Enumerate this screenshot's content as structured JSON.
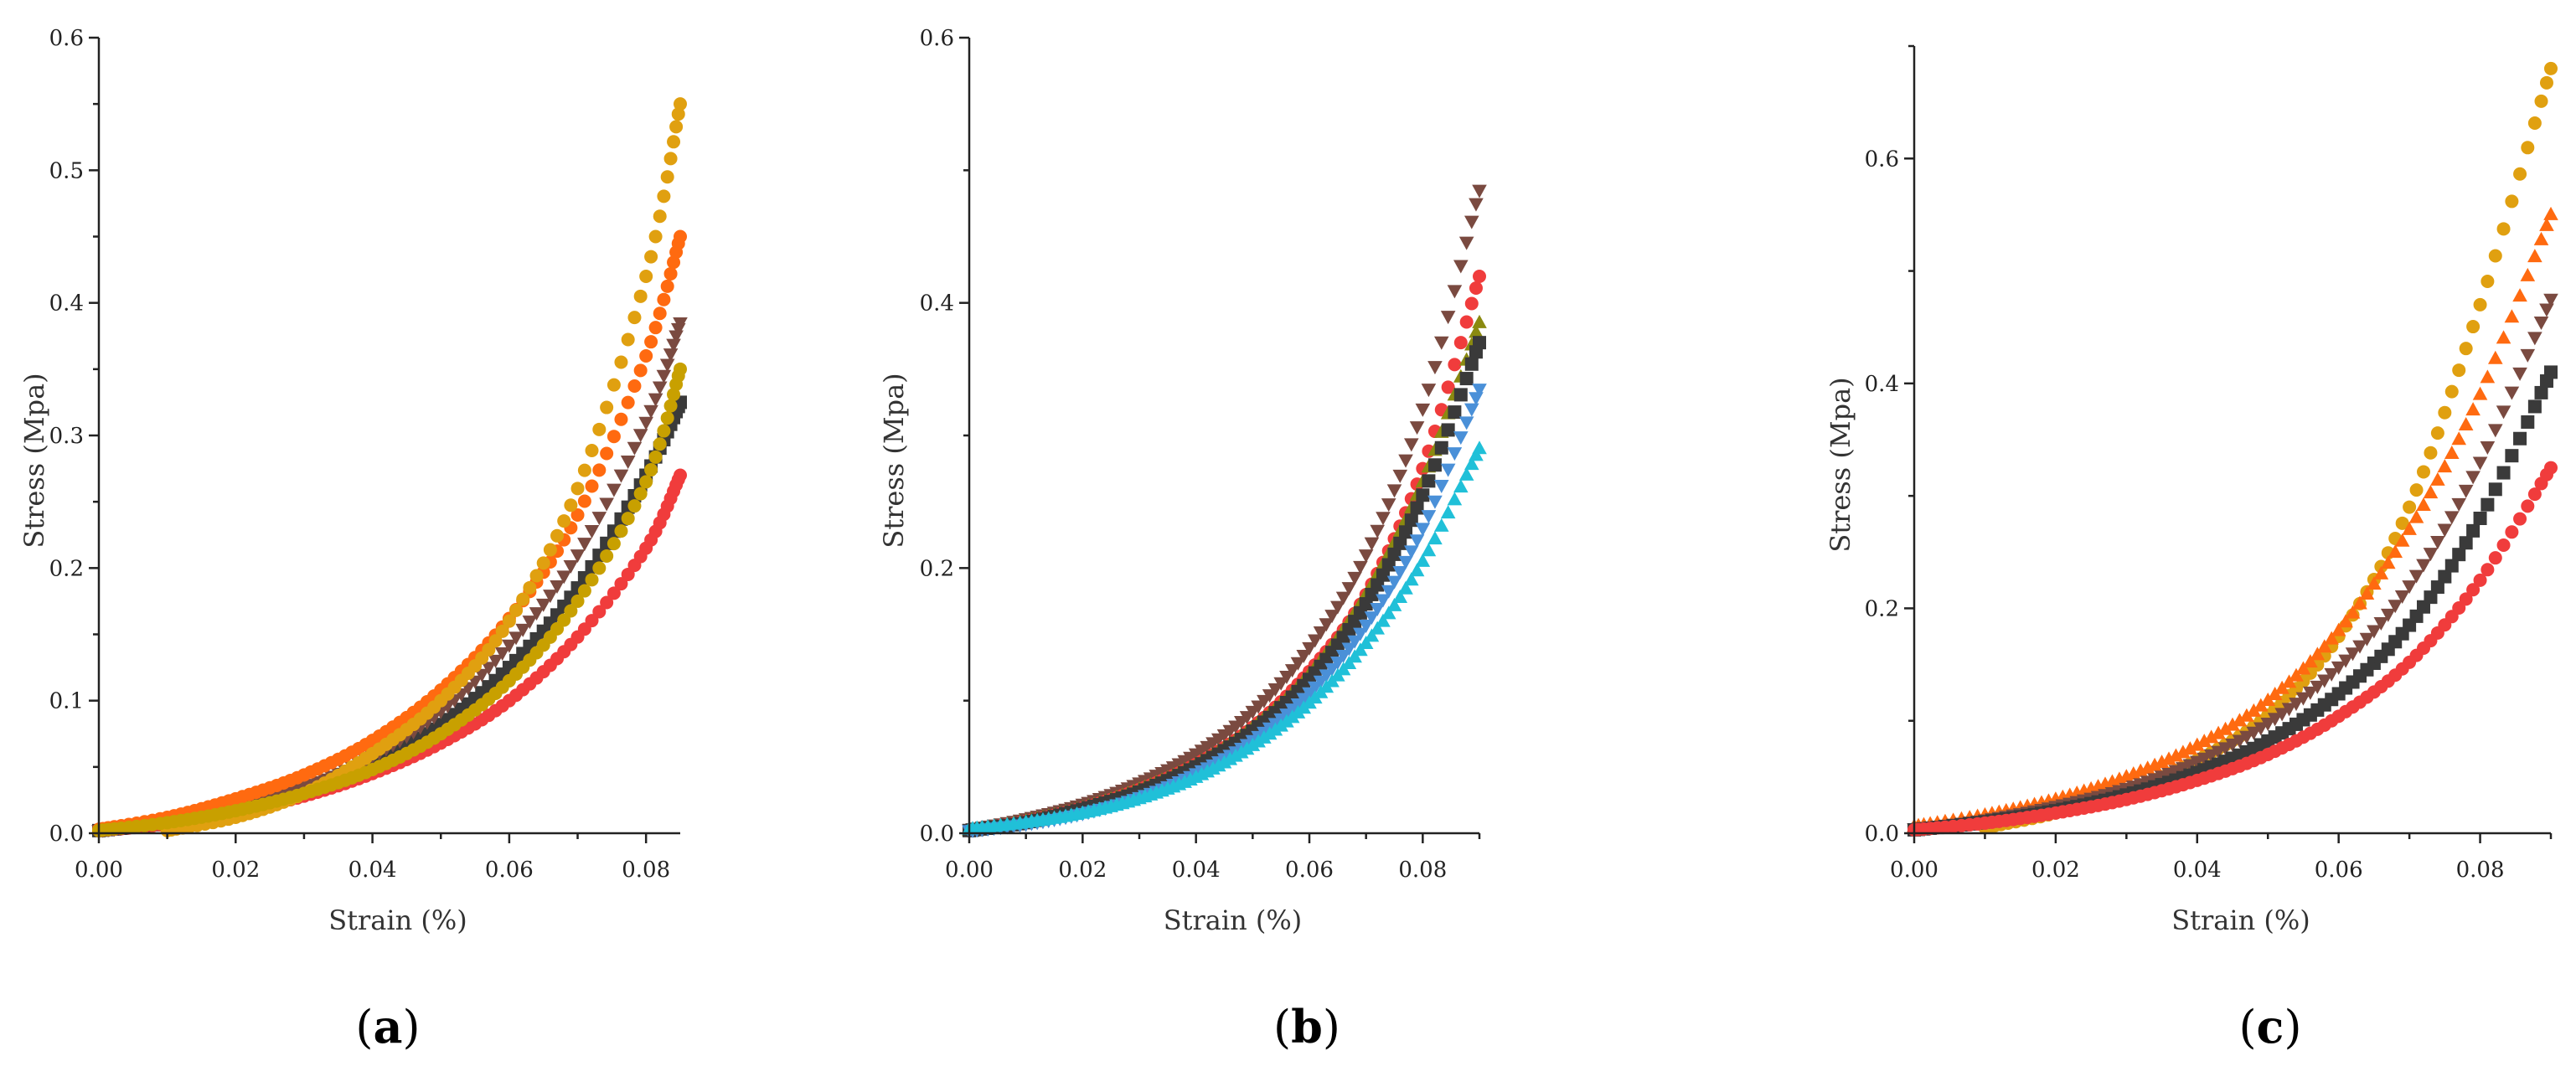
{
  "chart_data": [
    {
      "type": "scatter",
      "panel_label": "a",
      "xlabel": "Strain (%)",
      "ylabel": "Stress (Mpa)",
      "xlim": [
        0,
        0.085
      ],
      "ylim": [
        0,
        0.6
      ],
      "xticks": [
        "0.00",
        "0.02",
        "0.04",
        "0.06",
        "0.08"
      ],
      "yticks": [
        "0.0",
        "0.1",
        "0.2",
        "0.3",
        "0.4",
        "0.5",
        "0.6"
      ],
      "grid": false,
      "series": [
        {
          "color": "#3a3a3a",
          "marker": "square",
          "x": [
            0,
            0.01,
            0.02,
            0.03,
            0.04,
            0.05,
            0.06,
            0.07,
            0.08,
            0.085
          ],
          "y": [
            0.002,
            0.008,
            0.018,
            0.032,
            0.052,
            0.082,
            0.125,
            0.185,
            0.27,
            0.325
          ]
        },
        {
          "color": "#f03c3c",
          "marker": "circle",
          "x": [
            0,
            0.01,
            0.02,
            0.03,
            0.04,
            0.05,
            0.06,
            0.07,
            0.08,
            0.085
          ],
          "y": [
            0.002,
            0.007,
            0.016,
            0.028,
            0.045,
            0.068,
            0.1,
            0.148,
            0.215,
            0.27
          ]
        },
        {
          "color": "#7a4a40",
          "marker": "triangle-down",
          "x": [
            0,
            0.01,
            0.02,
            0.03,
            0.04,
            0.05,
            0.06,
            0.07,
            0.08,
            0.085
          ],
          "y": [
            0.002,
            0.009,
            0.02,
            0.035,
            0.058,
            0.092,
            0.142,
            0.21,
            0.31,
            0.385
          ]
        },
        {
          "color": "#ff6a10",
          "marker": "circle",
          "x": [
            0,
            0.01,
            0.02,
            0.03,
            0.04,
            0.05,
            0.06,
            0.07,
            0.08,
            0.085
          ],
          "y": [
            0.003,
            0.012,
            0.026,
            0.044,
            0.07,
            0.108,
            0.162,
            0.24,
            0.36,
            0.45
          ]
        },
        {
          "color": "#e0a010",
          "marker": "circle",
          "x": [
            0.01,
            0.02,
            0.03,
            0.04,
            0.05,
            0.06,
            0.07,
            0.08,
            0.085
          ],
          "y": [
            0.002,
            0.012,
            0.03,
            0.06,
            0.1,
            0.16,
            0.26,
            0.42,
            0.55
          ]
        },
        {
          "color": "#c8a000",
          "marker": "circle",
          "x": [
            0,
            0.01,
            0.02,
            0.03,
            0.04,
            0.05,
            0.06,
            0.07,
            0.08,
            0.085
          ],
          "y": [
            0.002,
            0.008,
            0.017,
            0.03,
            0.048,
            0.075,
            0.115,
            0.175,
            0.265,
            0.35
          ]
        }
      ]
    },
    {
      "type": "scatter",
      "panel_label": "b",
      "xlabel": "Strain (%)",
      "ylabel": "Stress (Mpa)",
      "xlim": [
        0,
        0.09
      ],
      "ylim": [
        0,
        0.6
      ],
      "xticks": [
        "0.00",
        "0.02",
        "0.04",
        "0.06",
        "0.08"
      ],
      "yticks": [
        "0.0",
        "0.2",
        "0.4",
        "0.6"
      ],
      "grid": false,
      "series": [
        {
          "color": "#7a4a40",
          "marker": "triangle-down",
          "x": [
            0,
            0.01,
            0.02,
            0.03,
            0.04,
            0.05,
            0.06,
            0.07,
            0.08,
            0.09
          ],
          "y": [
            0.003,
            0.011,
            0.022,
            0.038,
            0.06,
            0.092,
            0.14,
            0.21,
            0.32,
            0.485
          ]
        },
        {
          "color": "#f03c3c",
          "marker": "circle",
          "x": [
            0,
            0.01,
            0.02,
            0.03,
            0.04,
            0.05,
            0.06,
            0.07,
            0.08,
            0.09
          ],
          "y": [
            0.002,
            0.009,
            0.019,
            0.033,
            0.052,
            0.08,
            0.122,
            0.18,
            0.275,
            0.42
          ]
        },
        {
          "color": "#8a8a10",
          "marker": "triangle-up",
          "x": [
            0,
            0.01,
            0.02,
            0.03,
            0.04,
            0.05,
            0.06,
            0.07,
            0.08,
            0.09
          ],
          "y": [
            0.002,
            0.009,
            0.019,
            0.033,
            0.052,
            0.08,
            0.12,
            0.18,
            0.265,
            0.385
          ]
        },
        {
          "color": "#3a3a3a",
          "marker": "square",
          "x": [
            0,
            0.01,
            0.02,
            0.03,
            0.04,
            0.05,
            0.06,
            0.07,
            0.08,
            0.09
          ],
          "y": [
            0.002,
            0.008,
            0.018,
            0.031,
            0.05,
            0.077,
            0.116,
            0.173,
            0.255,
            0.37
          ]
        },
        {
          "color": "#4a90d8",
          "marker": "triangle-down",
          "x": [
            0,
            0.01,
            0.02,
            0.03,
            0.04,
            0.05,
            0.06,
            0.07,
            0.08,
            0.09
          ],
          "y": [
            0.002,
            0.007,
            0.015,
            0.027,
            0.045,
            0.07,
            0.106,
            0.157,
            0.23,
            0.335
          ]
        },
        {
          "color": "#20c0d8",
          "marker": "triangle-up",
          "x": [
            0,
            0.01,
            0.02,
            0.03,
            0.04,
            0.05,
            0.06,
            0.07,
            0.08,
            0.09
          ],
          "y": [
            0.003,
            0.008,
            0.015,
            0.026,
            0.042,
            0.066,
            0.098,
            0.143,
            0.205,
            0.29
          ]
        }
      ]
    },
    {
      "type": "scatter",
      "panel_label": "c",
      "xlabel": "Strain (%)",
      "ylabel": "Stress (Mpa)",
      "xlim": [
        0,
        0.09
      ],
      "ylim": [
        0,
        0.7
      ],
      "xticks": [
        "0.00",
        "0.02",
        "0.04",
        "0.06",
        "0.08"
      ],
      "yticks": [
        "0.0",
        "0.2",
        "0.4",
        "0.6"
      ],
      "grid": false,
      "series": [
        {
          "color": "#e0a010",
          "marker": "circle",
          "x": [
            0.01,
            0.02,
            0.03,
            0.04,
            0.05,
            0.06,
            0.07,
            0.08,
            0.09
          ],
          "y": [
            0.005,
            0.018,
            0.038,
            0.065,
            0.105,
            0.175,
            0.29,
            0.47,
            0.68
          ]
        },
        {
          "color": "#ff6a10",
          "marker": "triangle-up",
          "x": [
            0,
            0.01,
            0.02,
            0.03,
            0.04,
            0.05,
            0.06,
            0.07,
            0.08,
            0.09
          ],
          "y": [
            0.006,
            0.016,
            0.03,
            0.05,
            0.078,
            0.118,
            0.18,
            0.27,
            0.39,
            0.55
          ]
        },
        {
          "color": "#7a4a40",
          "marker": "triangle-down",
          "x": [
            0,
            0.01,
            0.02,
            0.03,
            0.04,
            0.05,
            0.06,
            0.07,
            0.08,
            0.09
          ],
          "y": [
            0.004,
            0.012,
            0.024,
            0.04,
            0.064,
            0.098,
            0.148,
            0.22,
            0.33,
            0.475
          ]
        },
        {
          "color": "#3a3a3a",
          "marker": "square",
          "x": [
            0,
            0.01,
            0.02,
            0.03,
            0.04,
            0.05,
            0.06,
            0.07,
            0.08,
            0.09
          ],
          "y": [
            0.003,
            0.01,
            0.02,
            0.034,
            0.054,
            0.082,
            0.124,
            0.185,
            0.28,
            0.41
          ]
        },
        {
          "color": "#f03c3c",
          "marker": "circle",
          "x": [
            0,
            0.01,
            0.02,
            0.03,
            0.04,
            0.05,
            0.06,
            0.07,
            0.08,
            0.09
          ],
          "y": [
            0.003,
            0.009,
            0.018,
            0.03,
            0.047,
            0.07,
            0.104,
            0.152,
            0.225,
            0.325
          ]
        }
      ]
    }
  ]
}
